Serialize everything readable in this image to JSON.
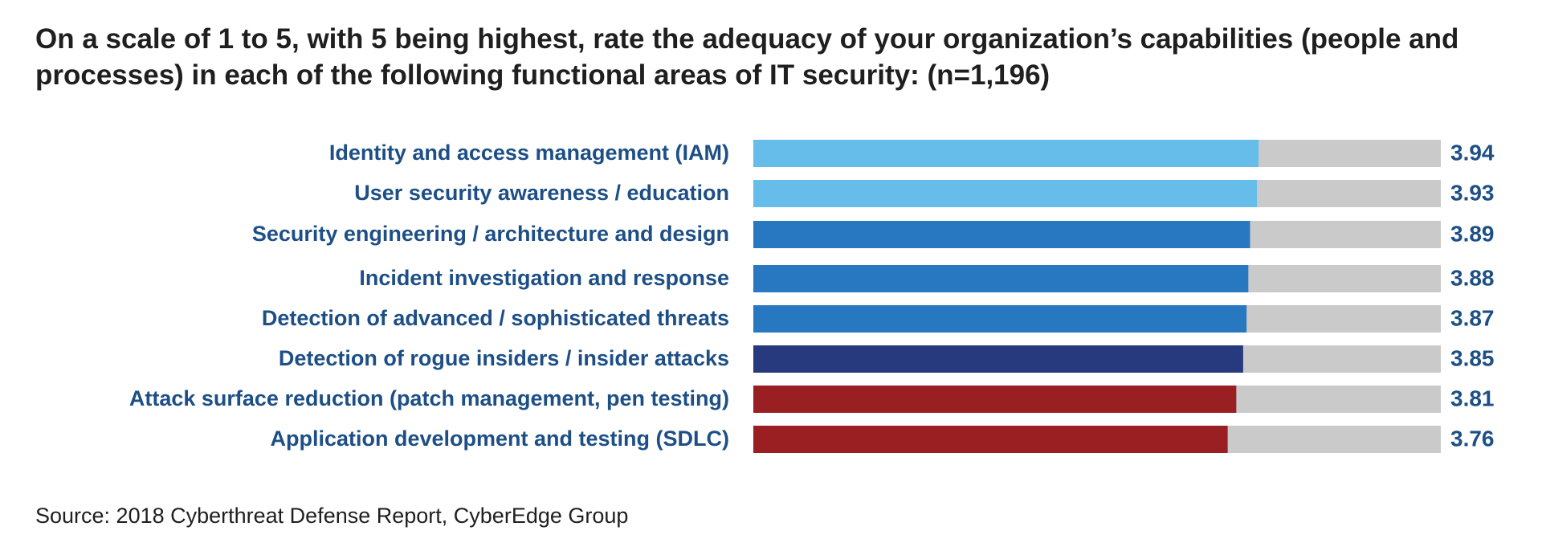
{
  "chart_data": {
    "type": "bar",
    "orientation": "horizontal",
    "title": "On a scale of 1 to 5, with 5 being highest, rate the adequacy of your organization’s capabilities (people and processes) in each of the following functional areas of IT security: (n=1,196)",
    "categories": [
      "Identity and access management (IAM)",
      "User security awareness / education",
      "Security engineering / architecture and design",
      "Incident investigation and response",
      "Detection of advanced / sophisticated threats",
      "Detection of rogue insiders / insider attacks",
      "Attack surface reduction (patch management, pen testing)",
      "Application development and testing (SDLC)"
    ],
    "values": [
      3.94,
      3.93,
      3.89,
      3.88,
      3.87,
      3.85,
      3.81,
      3.76
    ],
    "value_labels": [
      "3.94",
      "3.93",
      "3.89",
      "3.88",
      "3.87",
      "3.85",
      "3.81",
      "3.76"
    ],
    "xlim": [
      1,
      5
    ],
    "bar_colors": [
      "#66bdea",
      "#66bdea",
      "#2777c1",
      "#2777c1",
      "#2777c1",
      "#263a7d",
      "#9a1f23",
      "#9a1f23"
    ],
    "track_color": "#cbcaca",
    "label_color": "#1d4f86",
    "value_color": "#1d4f86",
    "grid": false,
    "legend": "none"
  },
  "source": "Source: 2018 Cyberthreat Defense Report, CyberEdge Group"
}
